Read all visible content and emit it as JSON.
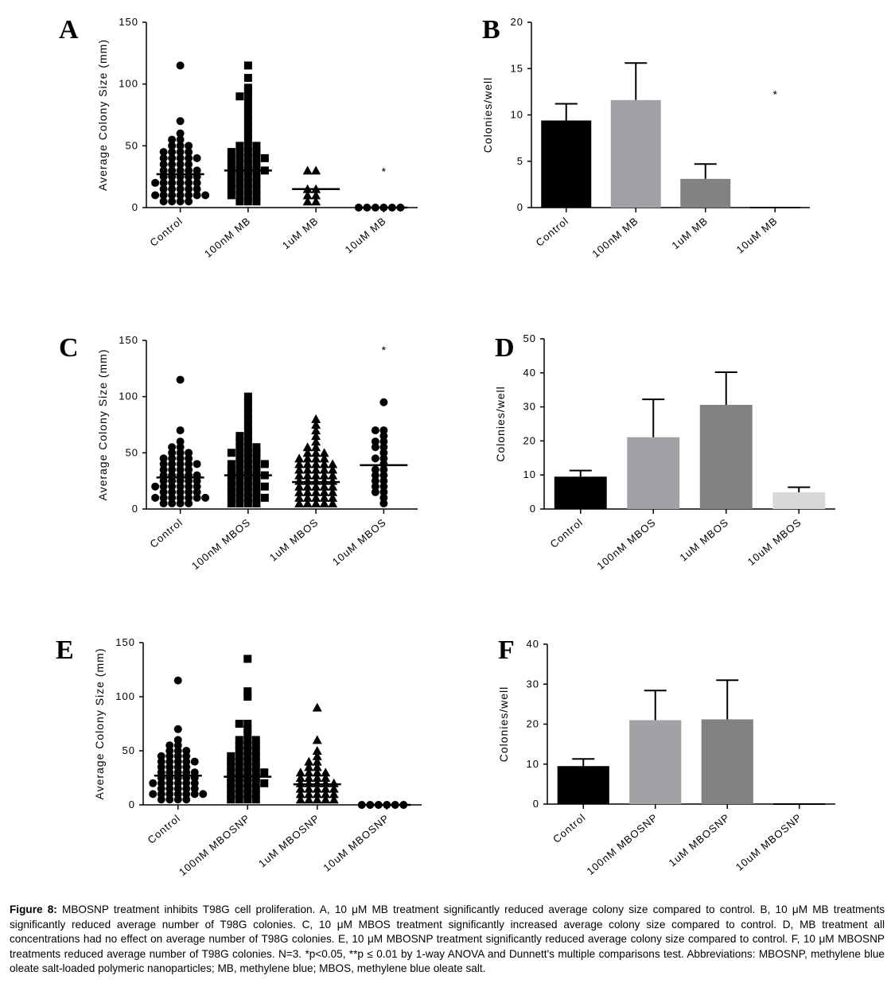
{
  "caption": {
    "label": "Figure 8:",
    "text": "MBOSNP treatment inhibits T98G cell proliferation. A, 10 μM MB treatment significantly reduced average colony size compared to control. B, 10 μM MB treatments significantly reduced average number of T98G colonies. C, 10 μM MBOS treatment significantly increased average colony size compared to control. D, MB treatment all concentrations had no effect on average number of T98G colonies. E, 10 μM MBOSNP treatment significantly reduced average colony size compared to control. F, 10 μM MBOSNP treatments reduced average number of T98G colonies. N=3. *p<0.05, **p ≤ 0.01 by 1-way ANOVA and Dunnett's multiple comparisons test. Abbreviations: MBOSNP, methylene blue oleate salt-loaded polymeric nanoparticles; MB, methylene blue; MBOS, methylene blue oleate salt."
  },
  "chart_data": [
    {
      "id": "A",
      "panel_label": "A",
      "type": "scatter",
      "ylabel": "Average Colony Size (mm)",
      "ylim": [
        0,
        150
      ],
      "yticks": [
        "0",
        "50",
        "100",
        "150"
      ],
      "categories": [
        "Control",
        "100nM MB",
        "1uM MB",
        "10uM MB"
      ],
      "marker_shapes": [
        "circle",
        "square",
        "triangle",
        "circle"
      ],
      "means": [
        27,
        30,
        15,
        0
      ],
      "annotations": [
        {
          "text": "*",
          "category": 3,
          "y": 26
        }
      ],
      "points": [
        [
          115,
          70,
          60,
          55,
          55,
          50,
          50,
          50,
          45,
          45,
          45,
          45,
          40,
          40,
          40,
          40,
          40,
          35,
          35,
          35,
          35,
          30,
          30,
          30,
          30,
          30,
          25,
          25,
          25,
          25,
          25,
          20,
          20,
          20,
          20,
          20,
          20,
          15,
          15,
          15,
          15,
          15,
          10,
          10,
          10,
          10,
          10,
          10,
          10,
          5,
          5,
          5,
          5
        ],
        [
          115,
          105,
          97,
          95,
          90,
          90,
          85,
          80,
          75,
          70,
          65,
          60,
          55,
          50,
          50,
          50,
          45,
          45,
          45,
          45,
          40,
          40,
          40,
          40,
          40,
          35,
          35,
          35,
          35,
          30,
          30,
          30,
          30,
          30,
          25,
          25,
          25,
          25,
          20,
          20,
          20,
          20,
          15,
          15,
          15,
          15,
          10,
          10,
          10,
          10,
          5,
          5,
          5
        ],
        [
          30,
          30,
          15,
          15,
          10,
          10,
          5,
          5
        ],
        [
          0,
          0,
          0,
          0,
          0,
          0
        ]
      ]
    },
    {
      "id": "B",
      "panel_label": "B",
      "type": "bar",
      "ylabel": "Colonies/well",
      "ylim": [
        0,
        20
      ],
      "yticks": [
        "0",
        "5",
        "10",
        "15",
        "20"
      ],
      "categories": [
        "Control",
        "100nM MB",
        "1uM MB",
        "10uM MB"
      ],
      "values": [
        9.4,
        11.6,
        3.1,
        0
      ],
      "errors": [
        1.8,
        4.0,
        1.6,
        0
      ],
      "colors": [
        "#000000",
        "#a2a2a6",
        "#828282",
        "#d0d0d0"
      ],
      "annotations": [
        {
          "text": "*",
          "category": 3,
          "y": 11.8
        }
      ]
    },
    {
      "id": "C",
      "panel_label": "C",
      "type": "scatter",
      "ylabel": "Average Colony Size (mm)",
      "ylim": [
        0,
        150
      ],
      "yticks": [
        "0",
        "50",
        "100",
        "150"
      ],
      "categories": [
        "Control",
        "100nM MBOS",
        "1uM MBOS",
        "10uM MBOS"
      ],
      "marker_shapes": [
        "circle",
        "square",
        "triangle",
        "circle"
      ],
      "means": [
        28,
        30,
        24,
        39
      ],
      "annotations": [
        {
          "text": "*",
          "category": 3,
          "y": 138
        }
      ],
      "points": [
        [
          115,
          70,
          60,
          55,
          55,
          50,
          50,
          50,
          45,
          45,
          45,
          45,
          40,
          40,
          40,
          40,
          40,
          35,
          35,
          35,
          35,
          30,
          30,
          30,
          30,
          30,
          25,
          25,
          25,
          25,
          25,
          20,
          20,
          20,
          20,
          20,
          20,
          15,
          15,
          15,
          15,
          15,
          10,
          10,
          10,
          10,
          10,
          10,
          10,
          5,
          5,
          5,
          5
        ],
        [
          100,
          95,
          90,
          85,
          80,
          75,
          70,
          65,
          65,
          60,
          60,
          55,
          55,
          55,
          50,
          50,
          50,
          50,
          45,
          45,
          45,
          40,
          40,
          40,
          40,
          40,
          35,
          35,
          35,
          35,
          30,
          30,
          30,
          30,
          30,
          25,
          25,
          25,
          25,
          20,
          20,
          20,
          20,
          20,
          15,
          15,
          15,
          15,
          10,
          10,
          10,
          10,
          10,
          5,
          5,
          5,
          5
        ],
        [
          80,
          75,
          70,
          65,
          60,
          55,
          55,
          50,
          50,
          50,
          45,
          45,
          45,
          45,
          40,
          40,
          40,
          40,
          40,
          35,
          35,
          35,
          35,
          35,
          30,
          30,
          30,
          30,
          30,
          25,
          25,
          25,
          25,
          25,
          20,
          20,
          20,
          20,
          20,
          15,
          15,
          15,
          15,
          15,
          10,
          10,
          10,
          10,
          10,
          5,
          5,
          5,
          5,
          5
        ],
        [
          95,
          70,
          70,
          65,
          60,
          60,
          55,
          55,
          50,
          45,
          45,
          40,
          35,
          35,
          30,
          30,
          25,
          25,
          20,
          20,
          15,
          15,
          10,
          5
        ]
      ]
    },
    {
      "id": "D",
      "panel_label": "D",
      "type": "bar",
      "ylabel": "Colonies/well",
      "ylim": [
        0,
        50
      ],
      "yticks": [
        "0",
        "10",
        "20",
        "30",
        "40",
        "50"
      ],
      "categories": [
        "Control",
        "100nM MBOS",
        "1uM MBOS",
        "10uM MBOS"
      ],
      "values": [
        9.5,
        21.1,
        30.6,
        4.9
      ],
      "errors": [
        1.8,
        11.1,
        9.6,
        1.5
      ],
      "colors": [
        "#000000",
        "#a2a2a6",
        "#828282",
        "#d8d8d8"
      ],
      "annotations": []
    },
    {
      "id": "E",
      "panel_label": "E",
      "type": "scatter",
      "ylabel": "Average Colony Size (mm)",
      "ylim": [
        0,
        150
      ],
      "yticks": [
        "0",
        "50",
        "100",
        "150"
      ],
      "categories": [
        "Control",
        "100nM MBOSNP",
        "1uM MBOSNP",
        "10uM MBOSNP"
      ],
      "marker_shapes": [
        "circle",
        "square",
        "triangle",
        "circle"
      ],
      "means": [
        27,
        26,
        19,
        0
      ],
      "annotations": [],
      "points": [
        [
          115,
          70,
          60,
          55,
          55,
          50,
          50,
          50,
          45,
          45,
          45,
          45,
          40,
          40,
          40,
          40,
          40,
          35,
          35,
          35,
          35,
          30,
          30,
          30,
          30,
          30,
          25,
          25,
          25,
          25,
          25,
          20,
          20,
          20,
          20,
          20,
          20,
          15,
          15,
          15,
          15,
          15,
          10,
          10,
          10,
          10,
          10,
          10,
          10,
          5,
          5,
          5,
          5
        ],
        [
          135,
          105,
          100,
          75,
          75,
          70,
          65,
          60,
          60,
          60,
          55,
          55,
          55,
          50,
          50,
          50,
          45,
          45,
          45,
          45,
          40,
          40,
          40,
          40,
          35,
          35,
          35,
          35,
          30,
          30,
          30,
          30,
          30,
          25,
          25,
          25,
          25,
          20,
          20,
          20,
          20,
          20,
          15,
          15,
          15,
          15,
          10,
          10,
          10,
          10,
          5,
          5,
          5,
          5
        ],
        [
          90,
          60,
          50,
          45,
          40,
          40,
          35,
          35,
          30,
          30,
          30,
          30,
          25,
          25,
          25,
          25,
          20,
          20,
          20,
          20,
          20,
          15,
          15,
          15,
          15,
          15,
          10,
          10,
          10,
          10,
          10,
          5,
          5,
          5,
          5,
          5
        ],
        [
          0,
          0,
          0,
          0,
          0,
          0
        ]
      ]
    },
    {
      "id": "F",
      "panel_label": "F",
      "type": "bar",
      "ylabel": "Colonies/well",
      "ylim": [
        0,
        40
      ],
      "yticks": [
        "0",
        "10",
        "20",
        "30",
        "40"
      ],
      "categories": [
        "Control",
        "100nM MBOSNP",
        "1uM MBOSNP",
        "10uM MBOSNP"
      ],
      "values": [
        9.5,
        21.0,
        21.2,
        0
      ],
      "errors": [
        1.8,
        7.4,
        9.8,
        0
      ],
      "colors": [
        "#000000",
        "#a2a2a6",
        "#828282",
        "#d0d0d0"
      ],
      "annotations": []
    }
  ]
}
